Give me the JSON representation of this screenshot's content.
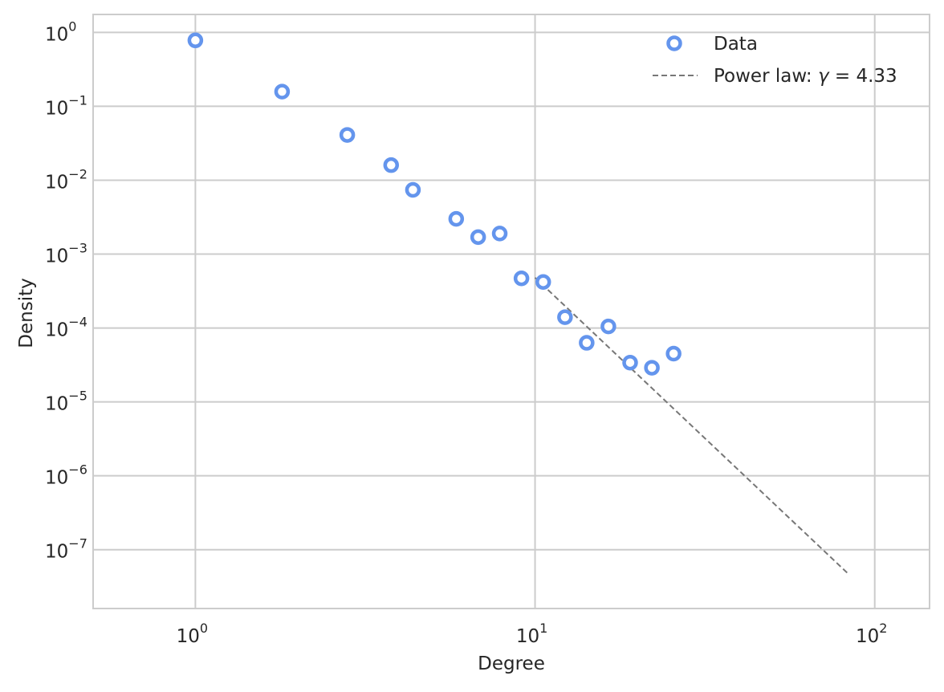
{
  "chart_data": {
    "type": "scatter",
    "title": "",
    "xlabel": "Degree",
    "ylabel": "Density",
    "xscale": "log",
    "yscale": "log",
    "xlim": [
      0.5,
      145
    ],
    "ylim": [
      1.6e-08,
      1.75
    ],
    "grid": true,
    "legend_position": "top-right",
    "x_ticks": [
      {
        "value": 1,
        "base": "10",
        "exp": "0"
      },
      {
        "value": 10,
        "base": "10",
        "exp": "1"
      },
      {
        "value": 100,
        "base": "10",
        "exp": "2"
      }
    ],
    "y_ticks": [
      {
        "value": 1,
        "base": "10",
        "exp": "0"
      },
      {
        "value": 0.1,
        "base": "10",
        "exp": "−1"
      },
      {
        "value": 0.01,
        "base": "10",
        "exp": "−2"
      },
      {
        "value": 0.001,
        "base": "10",
        "exp": "−3"
      },
      {
        "value": 0.0001,
        "base": "10",
        "exp": "−4"
      },
      {
        "value": 1e-05,
        "base": "10",
        "exp": "−5"
      },
      {
        "value": 1e-06,
        "base": "10",
        "exp": "−6"
      },
      {
        "value": 1e-07,
        "base": "10",
        "exp": "−7"
      }
    ],
    "series": [
      {
        "name": "Data",
        "kind": "scatter",
        "marker": "hollow-circle",
        "color": "#6495ED",
        "x": [
          1,
          1.8,
          2.8,
          3.77,
          4.37,
          5.86,
          6.8,
          7.87,
          9.12,
          10.57,
          12.25,
          14.19,
          16.44,
          19.05,
          22.08,
          25.58
        ],
        "y": [
          0.78,
          0.158,
          0.041,
          0.016,
          0.0074,
          0.003,
          0.0017,
          0.0019,
          0.00047,
          0.00042,
          0.00014,
          6.3e-05,
          0.000105,
          3.4e-05,
          2.9e-05,
          4.5e-05
        ]
      },
      {
        "name": "Power law: γ = 4.33",
        "label_prefix": "Power law: ",
        "label_symbol": "γ",
        "label_suffix": " = 4.33",
        "kind": "line",
        "style": "dashed",
        "color": "#777777",
        "exponent": 4.33,
        "x": [
          10,
          83
        ],
        "y": [
          0.00048,
          4.86e-08
        ]
      }
    ]
  }
}
